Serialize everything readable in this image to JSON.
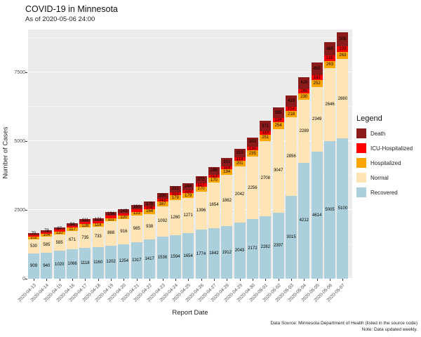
{
  "chart_data": {
    "type": "bar",
    "stacked": true,
    "title": "COVID-19 in Minnesota",
    "subtitle": "As of 2020-05-06 24:00",
    "xlabel": "Report Date",
    "ylabel": "Number of Cases",
    "ylim": [
      0,
      9060
    ],
    "yticks": [
      0,
      2500,
      5000,
      7500
    ],
    "yticks_minor": [
      1250,
      3750,
      6250,
      8750
    ],
    "grid": true,
    "legend_position": "right",
    "legend_title": "Legend",
    "categories": [
      "2020-04-13",
      "2020-04-14",
      "2020-04-15",
      "2020-04-16",
      "2020-04-17",
      "2020-04-18",
      "2020-04-19",
      "2020-04-20",
      "2020-04-21",
      "2020-04-22",
      "2020-04-23",
      "2020-04-24",
      "2020-04-25",
      "2020-04-26",
      "2020-04-27",
      "2020-04-28",
      "2020-04-29",
      "2020-04-30",
      "2020-05-01",
      "2020-05-02",
      "2020-05-03",
      "2020-05-04",
      "2020-05-05",
      "2020-05-06",
      "2020-05-07"
    ],
    "series": [
      {
        "name": "Recovered",
        "color": "#ABD0DB",
        "values": [
          909,
          940,
          1020,
          1066,
          1118,
          1160,
          1202,
          1254,
          1317,
          1417,
          1536,
          1594,
          1654,
          1774,
          1842,
          1912,
          2043,
          2172,
          2282,
          2397,
          3015,
          4212,
          4614,
          5005,
          5100
        ]
      },
      {
        "name": "Normal",
        "color": "#FFE4B5",
        "values": [
          530,
          585,
          585,
          671,
          735,
          733,
          888,
          916,
          985,
          938,
          1092,
          1260,
          1271,
          1396,
          1654,
          1862,
          2042,
          2256,
          2708,
          3047,
          2856,
          2289,
          2349,
          2646,
          2880
        ]
      },
      {
        "name": "Hospitalized",
        "color": "#FFA500",
        "values": [
          102,
          104,
          110,
          117,
          128,
          114,
          111,
          120,
          133,
          164,
          167,
          179,
          179,
          170,
          170,
          194,
          201,
          235,
          251,
          254,
          218,
          230,
          252,
          263,
          263
        ]
      },
      {
        "name": "ICU-Hospitalized",
        "color": "#FF0000",
        "values": [
          49,
          58,
          64,
          69,
          74,
          75,
          84,
          86,
          96,
          106,
          113,
          113,
          110,
          117,
          113,
          119,
          119,
          130,
          119,
          134,
          152,
          166,
          182,
          188,
          199
        ]
      },
      {
        "name": "Death",
        "color": "#8B1A1A",
        "values": [
          70,
          79,
          87,
          94,
          111,
          121,
          134,
          143,
          160,
          179,
          200,
          221,
          244,
          272,
          286,
          301,
          319,
          343,
          371,
          395,
          419,
          428,
          455,
          485,
          508
        ]
      }
    ],
    "legend_order_top_to_bottom": [
      "Death",
      "ICU-Hospitalized",
      "Hospitalized",
      "Normal",
      "Recovered"
    ],
    "footer_line1": "Data Source: Minnesota Department of Health (listed in the source code)",
    "footer_line2": "Note: Data updated weekly."
  }
}
